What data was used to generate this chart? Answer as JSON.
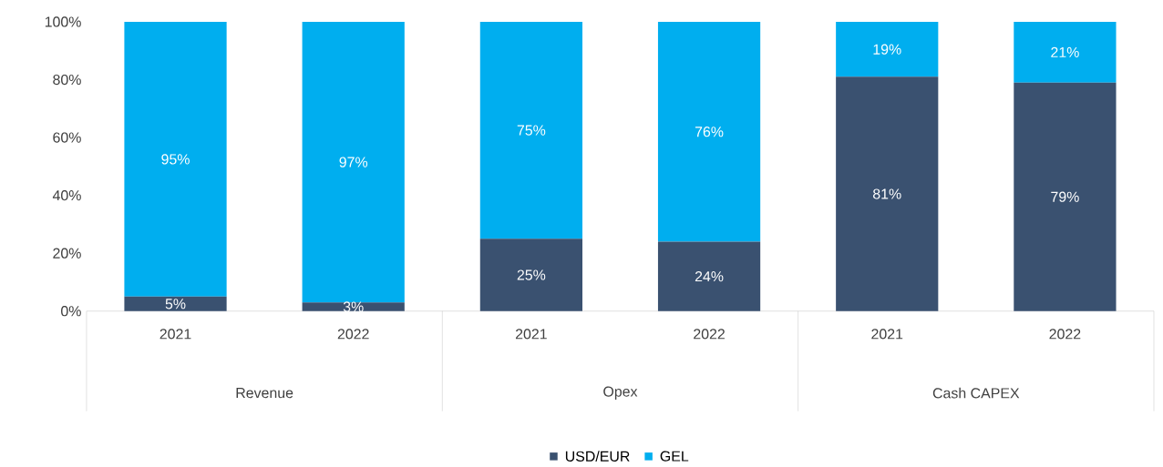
{
  "chart_data": {
    "type": "bar",
    "stacked": true,
    "categories": [
      "2021",
      "2022",
      "2021",
      "2022",
      "2021",
      "2022"
    ],
    "annotations": [
      "Revenue",
      "Opex",
      "Cash CAPEX"
    ],
    "series": [
      {
        "name": "USD/EUR",
        "color": "#3a5170",
        "values": [
          5,
          3,
          25,
          24,
          81,
          79
        ],
        "value_labels": [
          "5%",
          "3%",
          "25%",
          "24%",
          "81%",
          "79%"
        ]
      },
      {
        "name": "GEL",
        "color": "#00aeef",
        "values": [
          95,
          97,
          75,
          76,
          19,
          21
        ],
        "value_labels": [
          "95%",
          "97%",
          "75%",
          "76%",
          "19%",
          "21%"
        ]
      }
    ],
    "ylim": [
      0,
      100
    ],
    "yticks": [
      {
        "value": 0,
        "label": "0%"
      },
      {
        "value": 20,
        "label": "20%"
      },
      {
        "value": 40,
        "label": "40%"
      },
      {
        "value": 60,
        "label": "60%"
      },
      {
        "value": 80,
        "label": "80%"
      },
      {
        "value": 100,
        "label": "100%"
      }
    ],
    "legend": "bottom"
  }
}
